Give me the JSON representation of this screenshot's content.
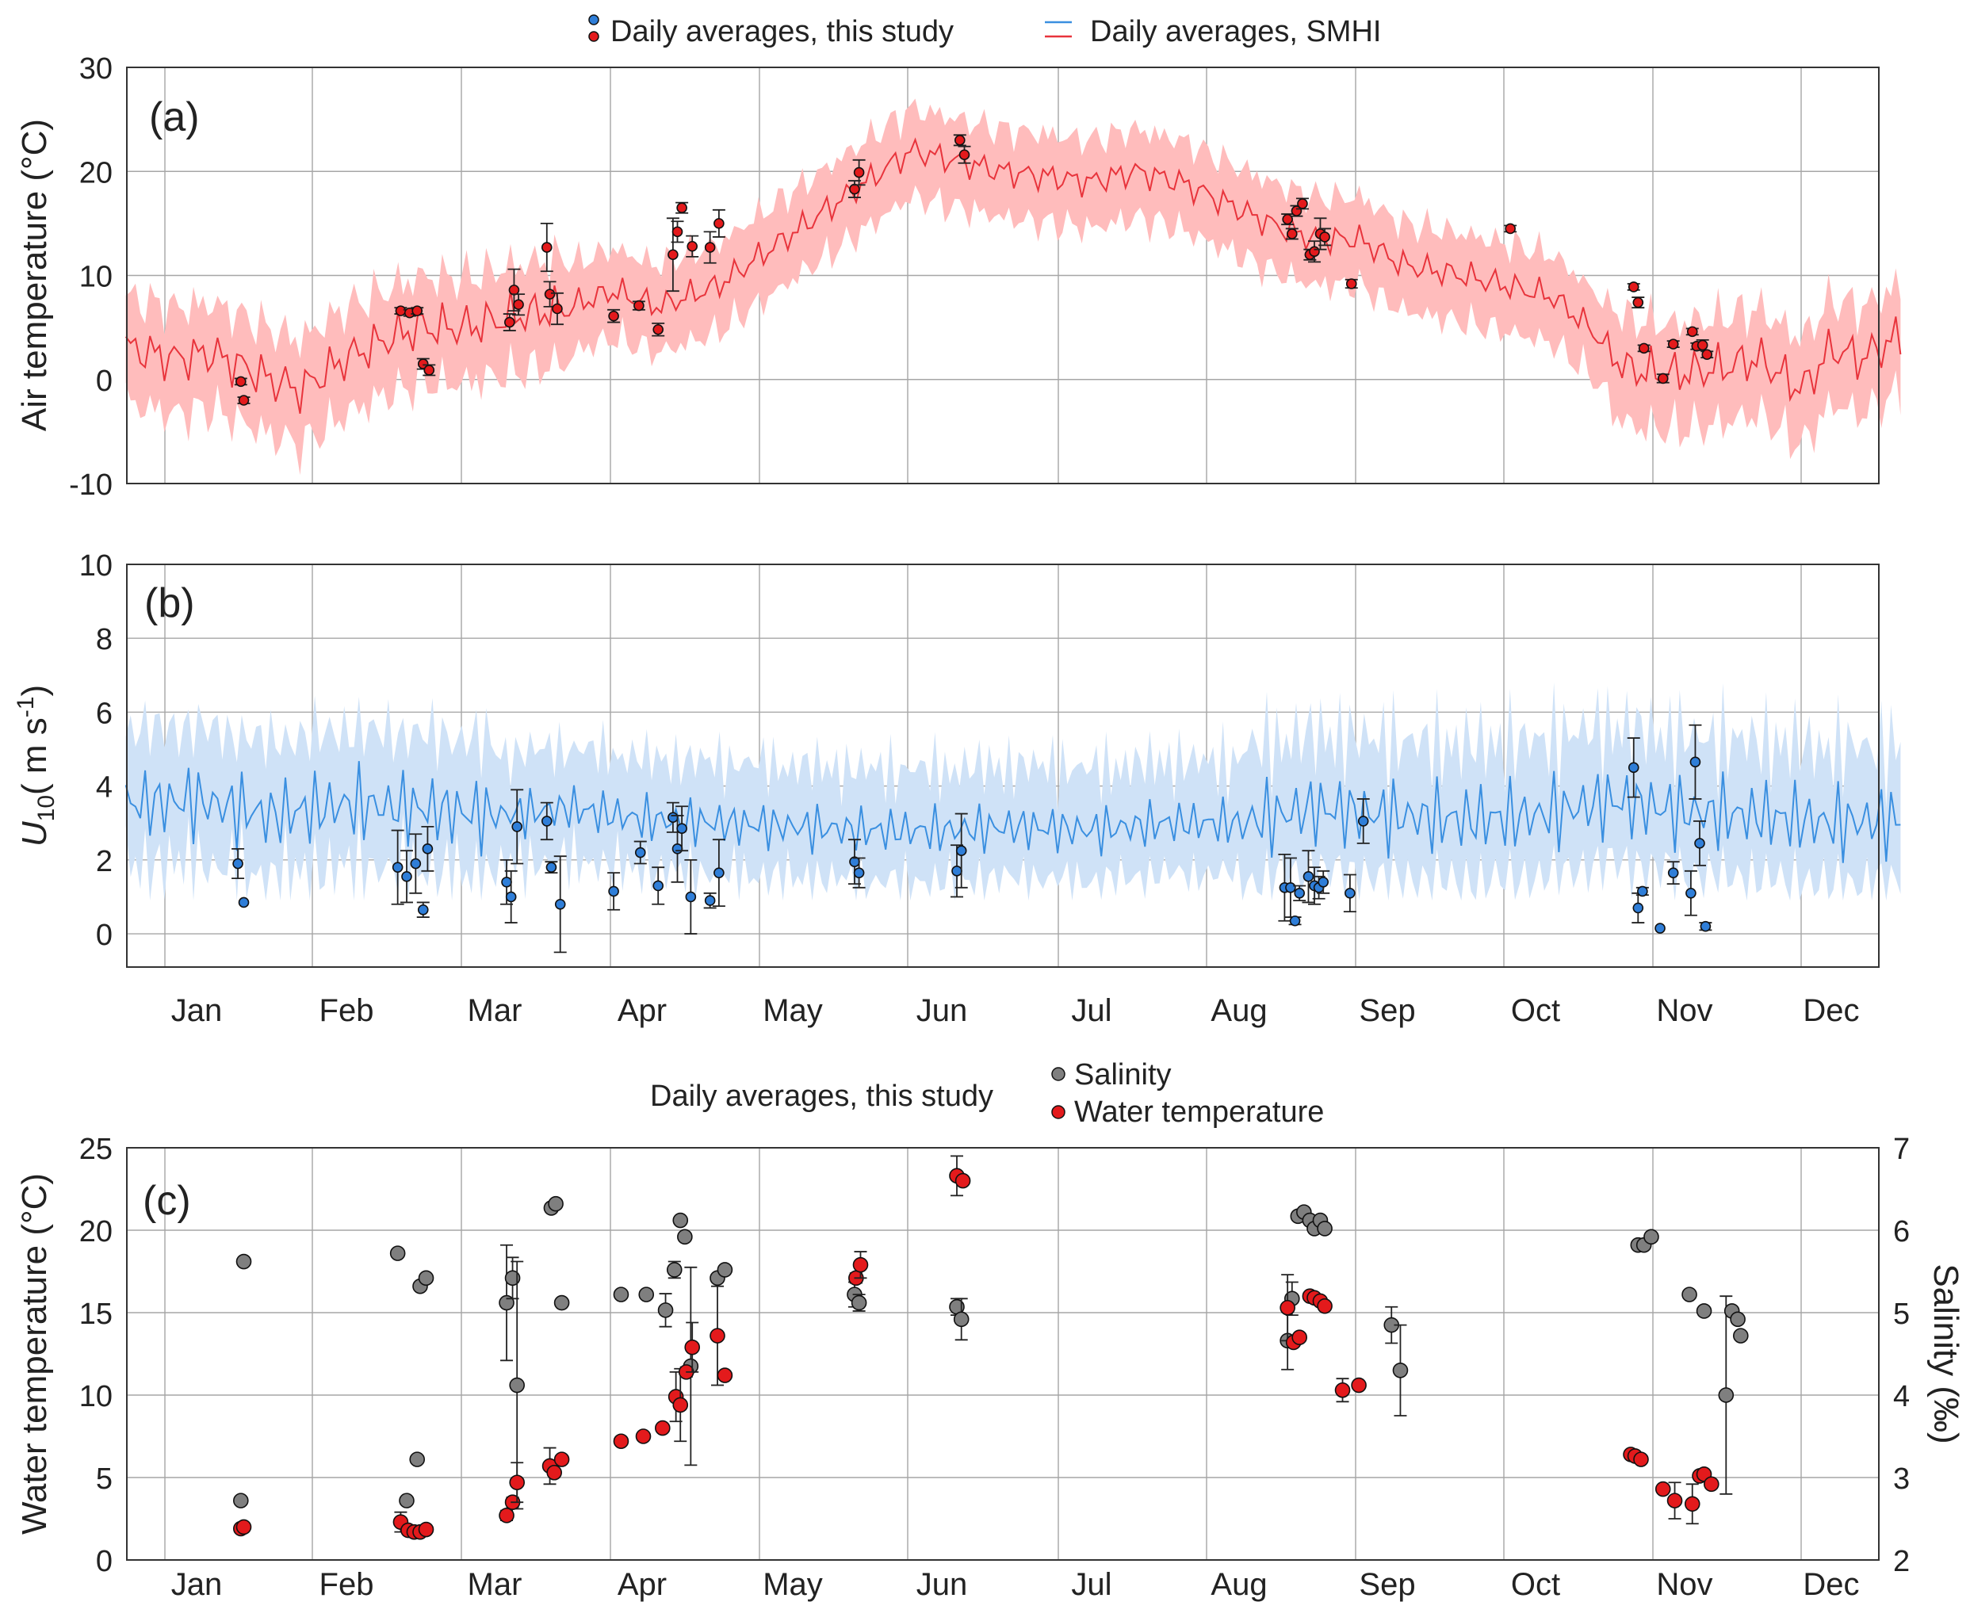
{
  "legend_top": {
    "study_label": "Daily averages, this study",
    "smhi_label": "Daily averages, SMHI"
  },
  "legend_bottom": {
    "prefix": "Daily averages, this study",
    "salinity_label": "Salinity",
    "water_temp_label": "Water temperature"
  },
  "months": [
    "Jan",
    "Feb",
    "Mar",
    "Apr",
    "May",
    "Jun",
    "Jul",
    "Aug",
    "Sep",
    "Oct",
    "Nov",
    "Dec"
  ],
  "colors": {
    "red_line": "#e8343c",
    "red_band": "#ffbcbc",
    "red_marker": "#e31a1c",
    "blue_line": "#3a8fe0",
    "blue_band": "#cfe2f7",
    "blue_marker": "#2f7ed8",
    "gray_marker": "#7f7f7f",
    "grid": "#a6a6a6"
  },
  "chart_data": [
    {
      "type": "line",
      "panel_label": "(a)",
      "ylabel": "Air temperature (°C)",
      "ylim": [
        -10,
        30
      ],
      "yticks": [
        -10,
        0,
        10,
        20,
        30
      ],
      "x_unit": "month",
      "grid": true,
      "smhi_anchor_x": [
        0.05,
        0.35,
        0.6,
        0.85,
        1.0,
        1.2,
        1.5,
        1.8,
        2.0,
        2.3,
        2.6,
        3.0,
        3.3,
        3.6,
        4.0,
        4.3,
        4.6,
        4.9,
        5.1,
        5.3,
        5.6,
        5.9,
        6.2,
        6.5,
        6.8,
        7.1,
        7.4,
        7.7,
        8.0,
        8.3,
        8.6,
        9.0,
        9.3,
        9.6,
        9.85,
        10.1,
        10.4,
        10.7,
        11.0,
        11.3,
        11.5,
        11.7,
        11.95
      ],
      "smhi_anchor_y": [
        3,
        2,
        2.5,
        1,
        0,
        -1,
        2,
        4,
        5,
        5,
        6,
        7,
        8.5,
        7,
        9,
        12,
        15,
        18,
        20,
        22,
        21,
        20,
        19.5,
        19,
        20,
        19,
        17,
        15,
        13.5,
        13.5,
        11,
        10,
        9,
        8,
        5,
        1,
        0.5,
        1,
        2,
        -1,
        3,
        2,
        4
      ],
      "study_points": [
        {
          "x": 0.8,
          "y": -0.2,
          "err": 0.3
        },
        {
          "x": 0.82,
          "y": -2.0,
          "err": 0.3
        },
        {
          "x": 1.87,
          "y": 6.6,
          "err": 0.3
        },
        {
          "x": 1.93,
          "y": 6.4,
          "err": 0.3
        },
        {
          "x": 1.98,
          "y": 6.6,
          "err": 0.3
        },
        {
          "x": 2.02,
          "y": 1.5,
          "err": 0.5
        },
        {
          "x": 2.06,
          "y": 0.9,
          "err": 0.5
        },
        {
          "x": 2.6,
          "y": 5.5,
          "err": 0.8
        },
        {
          "x": 2.63,
          "y": 8.6,
          "err": 2.0
        },
        {
          "x": 2.66,
          "y": 7.2,
          "err": 1.0
        },
        {
          "x": 2.85,
          "y": 12.7,
          "err": 2.3
        },
        {
          "x": 2.87,
          "y": 8.2,
          "err": 1.2
        },
        {
          "x": 2.92,
          "y": 6.8,
          "err": 1.5
        },
        {
          "x": 3.3,
          "y": 6.1,
          "err": 0.6
        },
        {
          "x": 3.47,
          "y": 7.1,
          "err": 0.4
        },
        {
          "x": 3.6,
          "y": 4.8,
          "err": 0.6
        },
        {
          "x": 3.7,
          "y": 12.0,
          "err": 3.5
        },
        {
          "x": 3.73,
          "y": 14.2,
          "err": 1.0
        },
        {
          "x": 3.76,
          "y": 16.5,
          "err": 0.5
        },
        {
          "x": 3.83,
          "y": 12.8,
          "err": 1.0
        },
        {
          "x": 3.95,
          "y": 12.7,
          "err": 1.5
        },
        {
          "x": 4.01,
          "y": 15.0,
          "err": 1.3
        },
        {
          "x": 4.92,
          "y": 18.3,
          "err": 0.8
        },
        {
          "x": 4.95,
          "y": 19.9,
          "err": 1.2
        },
        {
          "x": 5.62,
          "y": 23.0,
          "err": 0.5
        },
        {
          "x": 5.65,
          "y": 21.6,
          "err": 0.8
        },
        {
          "x": 7.82,
          "y": 15.4,
          "err": 0.5
        },
        {
          "x": 7.85,
          "y": 14.0,
          "err": 0.5
        },
        {
          "x": 7.88,
          "y": 16.2,
          "err": 0.5
        },
        {
          "x": 7.92,
          "y": 16.9,
          "err": 0.5
        },
        {
          "x": 7.97,
          "y": 12.0,
          "err": 0.5
        },
        {
          "x": 8.0,
          "y": 12.3,
          "err": 1.0
        },
        {
          "x": 8.04,
          "y": 14.0,
          "err": 1.5
        },
        {
          "x": 8.07,
          "y": 13.7,
          "err": 0.8
        },
        {
          "x": 8.25,
          "y": 9.2,
          "err": 0.4
        },
        {
          "x": 9.32,
          "y": 14.5,
          "err": 0.3
        },
        {
          "x": 10.15,
          "y": 8.9,
          "err": 0.3
        },
        {
          "x": 10.18,
          "y": 7.4,
          "err": 0.5
        },
        {
          "x": 10.22,
          "y": 3.0,
          "err": 0.3
        },
        {
          "x": 10.35,
          "y": 0.1,
          "err": 0.4
        },
        {
          "x": 10.42,
          "y": 3.4,
          "err": 0.3
        },
        {
          "x": 10.55,
          "y": 4.6,
          "err": 0.3
        },
        {
          "x": 10.58,
          "y": 3.2,
          "err": 0.3
        },
        {
          "x": 10.62,
          "y": 3.3,
          "err": 0.5
        },
        {
          "x": 10.65,
          "y": 2.4,
          "err": 0.3
        }
      ]
    },
    {
      "type": "line",
      "panel_label": "(b)",
      "ylabel_main": "U",
      "ylabel_sub": "10",
      "ylabel_unit": "( m s",
      "ylabel_sup": "-1",
      "ylabel_end": ")",
      "ylim": [
        -0.9,
        10
      ],
      "yticks": [
        0,
        2,
        4,
        6,
        8,
        10
      ],
      "x_unit": "month",
      "grid": true,
      "smhi_anchor_x": [
        0.0,
        0.5,
        1.0,
        1.5,
        2.0,
        2.5,
        3.0,
        3.5,
        4.0,
        4.5,
        5.0,
        5.5,
        6.0,
        6.5,
        7.0,
        7.5,
        8.0,
        8.5,
        9.0,
        9.5,
        10.0,
        10.5,
        11.0,
        11.5,
        12.0
      ],
      "smhi_anchor_y": [
        3.5,
        3.6,
        3.2,
        3.5,
        3.4,
        3.2,
        3.4,
        3.1,
        3.0,
        2.9,
        2.8,
        2.8,
        2.9,
        2.8,
        3.0,
        3.0,
        3.4,
        3.2,
        3.1,
        3.2,
        3.6,
        3.3,
        3.2,
        3.0,
        3.1
      ],
      "study_points": [
        {
          "x": 0.78,
          "y": 1.9,
          "err": 0.4
        },
        {
          "x": 0.82,
          "y": 0.85,
          "err": 0.0
        },
        {
          "x": 1.85,
          "y": 1.8,
          "err": 1.0
        },
        {
          "x": 1.91,
          "y": 1.55,
          "err": 0.7
        },
        {
          "x": 1.97,
          "y": 1.9,
          "err": 0.8
        },
        {
          "x": 2.02,
          "y": 0.65,
          "err": 0.2
        },
        {
          "x": 2.05,
          "y": 2.3,
          "err": 0.6
        },
        {
          "x": 2.58,
          "y": 1.4,
          "err": 0.6
        },
        {
          "x": 2.61,
          "y": 1.0,
          "err": 0.7
        },
        {
          "x": 2.65,
          "y": 2.9,
          "err": 1.0
        },
        {
          "x": 2.85,
          "y": 3.05,
          "err": 0.5
        },
        {
          "x": 2.88,
          "y": 1.8,
          "err": 0.15
        },
        {
          "x": 2.94,
          "y": 0.8,
          "err": 1.3
        },
        {
          "x": 3.3,
          "y": 1.15,
          "err": 0.5
        },
        {
          "x": 3.48,
          "y": 2.2,
          "err": 0.3
        },
        {
          "x": 3.6,
          "y": 1.3,
          "err": 0.5
        },
        {
          "x": 3.7,
          "y": 3.15,
          "err": 0.4
        },
        {
          "x": 3.73,
          "y": 2.3,
          "err": 0.9
        },
        {
          "x": 3.76,
          "y": 2.85,
          "err": 0.6
        },
        {
          "x": 3.82,
          "y": 1.0,
          "err": 1.0
        },
        {
          "x": 3.95,
          "y": 0.9,
          "err": 0.2
        },
        {
          "x": 4.01,
          "y": 1.65,
          "err": 0.9
        },
        {
          "x": 4.92,
          "y": 1.95,
          "err": 0.6
        },
        {
          "x": 4.95,
          "y": 1.65,
          "err": 0.4
        },
        {
          "x": 5.6,
          "y": 1.7,
          "err": 0.7
        },
        {
          "x": 5.63,
          "y": 2.25,
          "err": 1.0
        },
        {
          "x": 7.8,
          "y": 1.25,
          "err": 0.9
        },
        {
          "x": 7.84,
          "y": 1.25,
          "err": 0.8
        },
        {
          "x": 7.87,
          "y": 0.35,
          "err": 0.1
        },
        {
          "x": 7.9,
          "y": 1.1,
          "err": 0.2
        },
        {
          "x": 7.96,
          "y": 1.55,
          "err": 0.7
        },
        {
          "x": 8.0,
          "y": 1.3,
          "err": 0.5
        },
        {
          "x": 8.03,
          "y": 1.25,
          "err": 0.3
        },
        {
          "x": 8.06,
          "y": 1.4,
          "err": 0.3
        },
        {
          "x": 8.24,
          "y": 1.1,
          "err": 0.5
        },
        {
          "x": 8.33,
          "y": 3.05,
          "err": 0.6
        },
        {
          "x": 10.15,
          "y": 4.5,
          "err": 0.8
        },
        {
          "x": 10.18,
          "y": 0.7,
          "err": 0.4
        },
        {
          "x": 10.21,
          "y": 1.15,
          "err": 0.1
        },
        {
          "x": 10.33,
          "y": 0.15,
          "err": 0.0
        },
        {
          "x": 10.42,
          "y": 1.65,
          "err": 0.3
        },
        {
          "x": 10.54,
          "y": 1.1,
          "err": 0.6
        },
        {
          "x": 10.57,
          "y": 4.65,
          "err": 1.0
        },
        {
          "x": 10.6,
          "y": 2.45,
          "err": 0.6
        },
        {
          "x": 10.64,
          "y": 0.2,
          "err": 0.1
        }
      ]
    },
    {
      "type": "scatter",
      "panel_label": "(c)",
      "ylabel_left": "Water temperature (°C)",
      "ylabel_right": "Salinity (‰)",
      "ylim_left": [
        0,
        25
      ],
      "yticks_left": [
        0,
        5,
        10,
        15,
        20,
        25
      ],
      "ylim_right": [
        2,
        7
      ],
      "yticks_right": [
        2,
        3,
        4,
        5,
        6,
        7
      ],
      "x_unit": "month",
      "grid": true,
      "salinity_points": [
        {
          "x": 0.82,
          "y": 5.62,
          "err": 0.0
        },
        {
          "x": 0.8,
          "y": 2.72,
          "err": 0.0
        },
        {
          "x": 1.85,
          "y": 5.72,
          "err": 0.0
        },
        {
          "x": 1.91,
          "y": 2.72,
          "err": 0.0
        },
        {
          "x": 1.98,
          "y": 3.22,
          "err": 0.0
        },
        {
          "x": 2.0,
          "y": 5.32,
          "err": 0.0
        },
        {
          "x": 2.04,
          "y": 5.42,
          "err": 0.0
        },
        {
          "x": 2.58,
          "y": 5.12,
          "err": 0.7
        },
        {
          "x": 2.62,
          "y": 5.42,
          "err": 0.25
        },
        {
          "x": 2.65,
          "y": 4.12,
          "err": 1.5
        },
        {
          "x": 2.88,
          "y": 6.27,
          "err": 0.03
        },
        {
          "x": 2.91,
          "y": 6.32,
          "err": 0.03
        },
        {
          "x": 2.95,
          "y": 5.12,
          "err": 0.0
        },
        {
          "x": 3.35,
          "y": 5.22,
          "err": 0.0
        },
        {
          "x": 3.52,
          "y": 5.22,
          "err": 0.0
        },
        {
          "x": 3.65,
          "y": 5.03,
          "err": 0.2
        },
        {
          "x": 3.71,
          "y": 5.52,
          "err": 0.1
        },
        {
          "x": 3.75,
          "y": 6.12,
          "err": 0.0
        },
        {
          "x": 3.78,
          "y": 5.92,
          "err": 0.0
        },
        {
          "x": 3.82,
          "y": 4.35,
          "err": 1.2
        },
        {
          "x": 4.0,
          "y": 5.42,
          "err": 0.0
        },
        {
          "x": 4.05,
          "y": 5.52,
          "err": 0.0
        },
        {
          "x": 4.92,
          "y": 5.22,
          "err": 0.15
        },
        {
          "x": 4.95,
          "y": 5.12,
          "err": 0.1
        },
        {
          "x": 5.6,
          "y": 5.07,
          "err": 0.1
        },
        {
          "x": 5.63,
          "y": 4.92,
          "err": 0.25
        },
        {
          "x": 7.82,
          "y": 4.66,
          "err": 0.35
        },
        {
          "x": 7.85,
          "y": 5.17,
          "err": 0.2
        },
        {
          "x": 7.89,
          "y": 6.17,
          "err": 0.0
        },
        {
          "x": 7.93,
          "y": 6.22,
          "err": 0.0
        },
        {
          "x": 7.97,
          "y": 6.12,
          "err": 0.0
        },
        {
          "x": 8.0,
          "y": 6.02,
          "err": 0.0
        },
        {
          "x": 8.04,
          "y": 6.12,
          "err": 0.0
        },
        {
          "x": 8.07,
          "y": 6.02,
          "err": 0.0
        },
        {
          "x": 8.52,
          "y": 4.85,
          "err": 0.22
        },
        {
          "x": 8.58,
          "y": 4.3,
          "err": 0.55
        },
        {
          "x": 10.18,
          "y": 5.82,
          "err": 0.0
        },
        {
          "x": 10.22,
          "y": 5.82,
          "err": 0.0
        },
        {
          "x": 10.27,
          "y": 5.92,
          "err": 0.0
        },
        {
          "x": 10.53,
          "y": 5.22,
          "err": 0.0
        },
        {
          "x": 10.63,
          "y": 5.02,
          "err": 0.0
        },
        {
          "x": 10.78,
          "y": 4.0,
          "err": 1.2
        },
        {
          "x": 10.82,
          "y": 5.02,
          "err": 0.0
        },
        {
          "x": 10.86,
          "y": 4.92,
          "err": 0.0
        },
        {
          "x": 10.88,
          "y": 4.72,
          "err": 0.0
        }
      ],
      "water_temp_points": [
        {
          "x": 0.8,
          "y": 1.9,
          "err": 0.0
        },
        {
          "x": 0.82,
          "y": 2.0,
          "err": 0.0
        },
        {
          "x": 1.87,
          "y": 2.3,
          "err": 0.6
        },
        {
          "x": 1.92,
          "y": 1.8,
          "err": 0.0
        },
        {
          "x": 1.96,
          "y": 1.7,
          "err": 0.0
        },
        {
          "x": 2.0,
          "y": 1.7,
          "err": 0.0
        },
        {
          "x": 2.04,
          "y": 1.85,
          "err": 0.0
        },
        {
          "x": 2.58,
          "y": 2.7,
          "err": 0.3
        },
        {
          "x": 2.62,
          "y": 3.5,
          "err": 0.3
        },
        {
          "x": 2.65,
          "y": 4.7,
          "err": 1.2
        },
        {
          "x": 2.87,
          "y": 5.7,
          "err": 1.1
        },
        {
          "x": 2.9,
          "y": 5.3,
          "err": 0.0
        },
        {
          "x": 2.95,
          "y": 6.1,
          "err": 0.0
        },
        {
          "x": 3.35,
          "y": 7.2,
          "err": 0.0
        },
        {
          "x": 3.5,
          "y": 7.5,
          "err": 0.0
        },
        {
          "x": 3.63,
          "y": 8.0,
          "err": 0.0
        },
        {
          "x": 3.72,
          "y": 9.9,
          "err": 1.5
        },
        {
          "x": 3.75,
          "y": 9.4,
          "err": 2.2
        },
        {
          "x": 3.79,
          "y": 11.4,
          "err": 0.3
        },
        {
          "x": 3.83,
          "y": 12.9,
          "err": 1.5
        },
        {
          "x": 4.0,
          "y": 13.6,
          "err": 3.0
        },
        {
          "x": 4.05,
          "y": 11.2,
          "err": 0.0
        },
        {
          "x": 4.93,
          "y": 17.1,
          "err": 0.3
        },
        {
          "x": 4.96,
          "y": 17.9,
          "err": 0.8
        },
        {
          "x": 5.6,
          "y": 23.3,
          "err": 1.2
        },
        {
          "x": 5.64,
          "y": 23.0,
          "err": 0.0
        },
        {
          "x": 7.82,
          "y": 15.3,
          "err": 2.0
        },
        {
          "x": 7.86,
          "y": 13.2,
          "err": 0.0
        },
        {
          "x": 7.9,
          "y": 13.5,
          "err": 0.0
        },
        {
          "x": 7.97,
          "y": 16.0,
          "err": 0.0
        },
        {
          "x": 8.0,
          "y": 15.9,
          "err": 0.0
        },
        {
          "x": 8.04,
          "y": 15.7,
          "err": 0.0
        },
        {
          "x": 8.07,
          "y": 15.4,
          "err": 0.0
        },
        {
          "x": 8.19,
          "y": 10.3,
          "err": 0.7
        },
        {
          "x": 8.3,
          "y": 10.6,
          "err": 0.0
        },
        {
          "x": 10.13,
          "y": 6.4,
          "err": 0.0
        },
        {
          "x": 10.16,
          "y": 6.3,
          "err": 0.0
        },
        {
          "x": 10.2,
          "y": 6.1,
          "err": 0.0
        },
        {
          "x": 10.35,
          "y": 4.3,
          "err": 0.0
        },
        {
          "x": 10.43,
          "y": 3.6,
          "err": 1.1
        },
        {
          "x": 10.55,
          "y": 3.4,
          "err": 1.2
        },
        {
          "x": 10.6,
          "y": 5.1,
          "err": 0.0
        },
        {
          "x": 10.63,
          "y": 5.2,
          "err": 0.0
        },
        {
          "x": 10.68,
          "y": 4.6,
          "err": 0.0
        }
      ]
    }
  ]
}
